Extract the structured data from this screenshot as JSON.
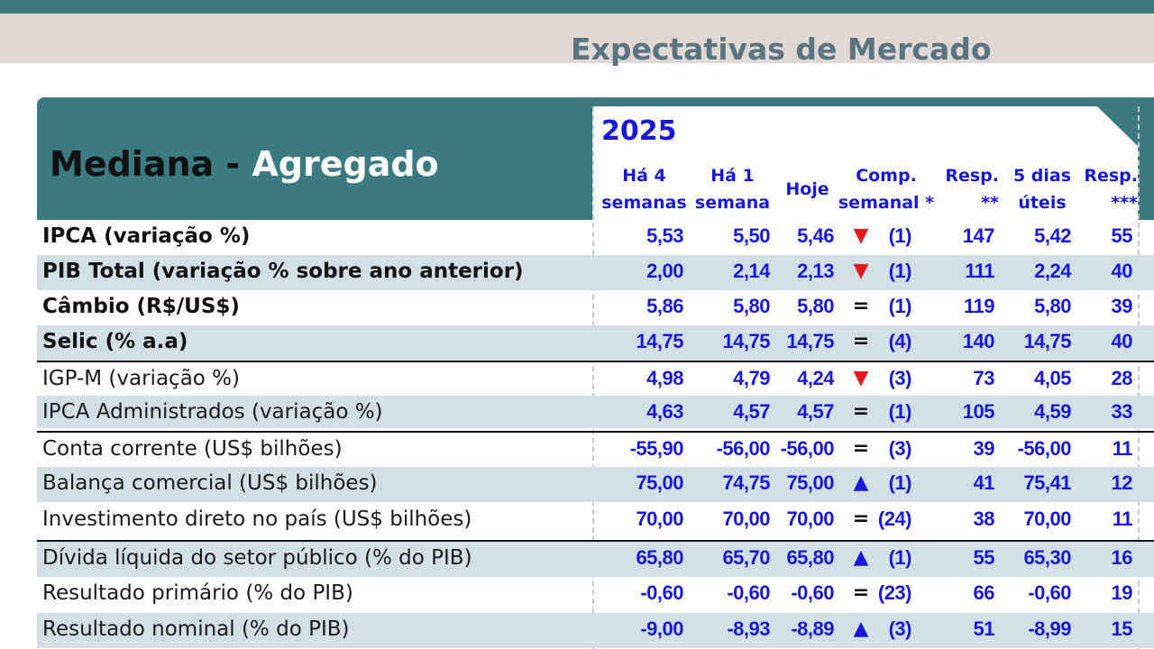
{
  "banner_title": "Expectativas de Mercado",
  "header": {
    "mediana": "Mediana - ",
    "agregado": "Agregado",
    "year": "2025"
  },
  "columns": [
    "Há 4\nsemanas",
    "Há 1\nsemana",
    "Hoje",
    "Comp.\nsemanal *",
    "Resp.\n**",
    "5 dias\núteis",
    "Resp.\n***"
  ],
  "rows": [
    {
      "label": "IPCA (variação %)",
      "bold": true,
      "h4": "5,53",
      "h1": "5,50",
      "hoje": "5,46",
      "trend": "down",
      "comp": "(1)",
      "resp": "147",
      "d5": "5,42",
      "resp3": "55"
    },
    {
      "label": "PIB Total (variação % sobre ano anterior)",
      "bold": true,
      "h4": "2,00",
      "h1": "2,14",
      "hoje": "2,13",
      "trend": "down",
      "comp": "(1)",
      "resp": "111",
      "d5": "2,24",
      "resp3": "40"
    },
    {
      "label": "Câmbio (R$/US$)",
      "bold": true,
      "h4": "5,86",
      "h1": "5,80",
      "hoje": "5,80",
      "trend": "eq",
      "comp": "(1)",
      "resp": "119",
      "d5": "5,80",
      "resp3": "39"
    },
    {
      "label": "Selic (% a.a)",
      "bold": true,
      "h4": "14,75",
      "h1": "14,75",
      "hoje": "14,75",
      "trend": "eq",
      "comp": "(4)",
      "resp": "140",
      "d5": "14,75",
      "resp3": "40"
    },
    {
      "label": "IGP-M (variação %)",
      "bold": false,
      "h4": "4,98",
      "h1": "4,79",
      "hoje": "4,24",
      "trend": "down",
      "comp": "(3)",
      "resp": "73",
      "d5": "4,05",
      "resp3": "28"
    },
    {
      "label": "IPCA Administrados (variação %)",
      "bold": false,
      "h4": "4,63",
      "h1": "4,57",
      "hoje": "4,57",
      "trend": "eq",
      "comp": "(1)",
      "resp": "105",
      "d5": "4,59",
      "resp3": "33"
    },
    {
      "label": "Conta corrente (US$ bilhões)",
      "bold": false,
      "h4": "-55,90",
      "h1": "-56,00",
      "hoje": "-56,00",
      "trend": "eq",
      "comp": "(3)",
      "resp": "39",
      "d5": "-56,00",
      "resp3": "11"
    },
    {
      "label": "Balança comercial (US$ bilhões)",
      "bold": false,
      "h4": "75,00",
      "h1": "74,75",
      "hoje": "75,00",
      "trend": "up",
      "comp": "(1)",
      "resp": "41",
      "d5": "75,41",
      "resp3": "12"
    },
    {
      "label": "Investimento direto no país (US$ bilhões)",
      "bold": false,
      "h4": "70,00",
      "h1": "70,00",
      "hoje": "70,00",
      "trend": "eq",
      "comp": "(24)",
      "resp": "38",
      "d5": "70,00",
      "resp3": "11"
    },
    {
      "label": "Dívida líquida do setor público (% do PIB)",
      "bold": false,
      "h4": "65,80",
      "h1": "65,70",
      "hoje": "65,80",
      "trend": "up",
      "comp": "(1)",
      "resp": "55",
      "d5": "65,30",
      "resp3": "16"
    },
    {
      "label": "Resultado primário (% do PIB)",
      "bold": false,
      "h4": "-0,60",
      "h1": "-0,60",
      "hoje": "-0,60",
      "trend": "eq",
      "comp": "(23)",
      "resp": "66",
      "d5": "-0,60",
      "resp3": "19"
    },
    {
      "label": "Resultado nominal (% do PIB)",
      "bold": false,
      "h4": "-9,00",
      "h1": "-8,93",
      "hoje": "-8,89",
      "trend": "up",
      "comp": "(3)",
      "resp": "51",
      "d5": "-8,99",
      "resp3": "15"
    }
  ],
  "trend_glyphs": {
    "down": "▼",
    "up": "▲",
    "eq": "="
  },
  "colors": {
    "header_teal": "#3a7a80",
    "accent_blue": "#1818d6",
    "down_red": "#e11c1c",
    "row_shade": "#d2dfe4"
  }
}
